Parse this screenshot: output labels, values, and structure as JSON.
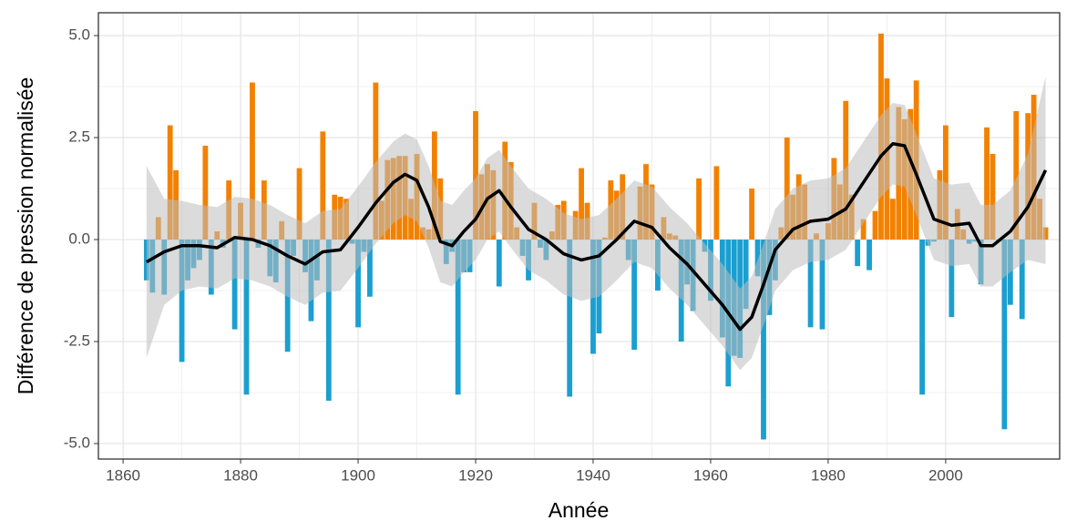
{
  "chart_data": {
    "type": "bar",
    "xlabel": "Année",
    "ylabel": "Différence de pression normalisée",
    "positive_color": "#f28100",
    "negative_color": "#1a9fd0",
    "xlim": [
      1855.8,
      2019.4
    ],
    "ylim": [
      -5.38,
      5.56
    ],
    "xticks": [
      1860,
      1880,
      1900,
      1920,
      1940,
      1960,
      1980,
      2000
    ],
    "yticks": [
      {
        "value": 5,
        "label": "5.0"
      },
      {
        "value": 2.5,
        "label": "2.5"
      },
      {
        "value": 0,
        "label": "0.0"
      },
      {
        "value": -2.5,
        "label": "-2.5"
      },
      {
        "value": -5,
        "label": "-5.0"
      }
    ],
    "grid": true,
    "minor_grid": true,
    "x": [
      1864,
      1865,
      1866,
      1867,
      1868,
      1869,
      1870,
      1871,
      1872,
      1873,
      1874,
      1875,
      1876,
      1877,
      1878,
      1879,
      1880,
      1881,
      1882,
      1883,
      1884,
      1885,
      1886,
      1887,
      1888,
      1889,
      1890,
      1891,
      1892,
      1893,
      1894,
      1895,
      1896,
      1897,
      1898,
      1899,
      1900,
      1901,
      1902,
      1903,
      1904,
      1905,
      1906,
      1907,
      1908,
      1909,
      1910,
      1911,
      1912,
      1913,
      1914,
      1915,
      1916,
      1917,
      1918,
      1919,
      1920,
      1921,
      1922,
      1923,
      1924,
      1925,
      1926,
      1927,
      1928,
      1929,
      1930,
      1931,
      1932,
      1933,
      1934,
      1935,
      1936,
      1937,
      1938,
      1939,
      1940,
      1941,
      1942,
      1943,
      1944,
      1945,
      1946,
      1947,
      1948,
      1949,
      1950,
      1951,
      1952,
      1953,
      1954,
      1955,
      1956,
      1957,
      1958,
      1959,
      1960,
      1961,
      1962,
      1963,
      1964,
      1965,
      1966,
      1967,
      1968,
      1969,
      1970,
      1971,
      1972,
      1973,
      1974,
      1975,
      1976,
      1977,
      1978,
      1979,
      1980,
      1981,
      1982,
      1983,
      1984,
      1985,
      1986,
      1987,
      1988,
      1989,
      1990,
      1991,
      1992,
      1993,
      1994,
      1995,
      1996,
      1997,
      1998,
      1999,
      2000,
      2001,
      2002,
      2003,
      2004,
      2005,
      2006,
      2007,
      2008,
      2009,
      2010,
      2011,
      2012,
      2013,
      2014,
      2015,
      2016,
      2017
    ],
    "values": [
      -1.0,
      -1.3,
      0.55,
      -1.35,
      2.8,
      1.7,
      -3.0,
      -1.0,
      -0.7,
      -0.5,
      2.3,
      -1.35,
      0.2,
      -0.2,
      1.45,
      -2.2,
      0.9,
      -3.8,
      3.85,
      -0.2,
      1.45,
      -0.9,
      -1.05,
      0.45,
      -2.75,
      -0.4,
      1.75,
      -0.8,
      -2.0,
      -1.0,
      2.65,
      -3.95,
      1.1,
      1.05,
      1.0,
      -0.1,
      -2.15,
      -0.3,
      -1.4,
      3.85,
      0.95,
      1.95,
      2.0,
      2.05,
      2.05,
      1.0,
      2.1,
      0.3,
      0.25,
      2.65,
      1.5,
      -0.6,
      -0.3,
      -3.8,
      -0.8,
      -0.8,
      3.15,
      1.6,
      1.85,
      1.7,
      -1.15,
      2.4,
      1.9,
      0.3,
      -0.4,
      -1.0,
      0.9,
      -0.2,
      -0.5,
      0.2,
      0.85,
      0.95,
      -3.85,
      0.7,
      1.75,
      0.9,
      -2.8,
      -2.3,
      0.05,
      1.45,
      1.2,
      1.6,
      -0.5,
      -2.7,
      1.3,
      1.85,
      1.35,
      -1.25,
      0.55,
      0.15,
      0.1,
      -2.5,
      -1.1,
      -1.75,
      1.5,
      -0.3,
      -1.5,
      1.8,
      -2.4,
      -3.6,
      -2.85,
      -2.9,
      -1.7,
      1.25,
      -0.9,
      -4.9,
      -1.85,
      -1.0,
      0.3,
      2.5,
      1.1,
      1.6,
      1.35,
      -2.15,
      0.15,
      -2.2,
      0.4,
      2.0,
      1.35,
      3.4,
      1.1,
      -0.65,
      0.5,
      -0.75,
      0.7,
      5.05,
      3.95,
      1.0,
      3.25,
      2.95,
      3.2,
      3.9,
      -3.8,
      -0.15,
      -0.05,
      1.7,
      2.8,
      -1.9,
      0.75,
      0.25,
      -0.1,
      -0.05,
      -1.1,
      2.75,
      2.1,
      -0.05,
      -4.65,
      -1.6,
      3.15,
      -1.95,
      3.1,
      3.55,
      1.0,
      0.3
    ],
    "smooth": {
      "color": "#000000",
      "band_color": "#bdbdbd",
      "x": [
        1864,
        1867,
        1870,
        1873,
        1876,
        1879,
        1882,
        1885,
        1888,
        1891,
        1894,
        1897,
        1900,
        1903,
        1906,
        1908,
        1910,
        1912,
        1914,
        1916,
        1918,
        1920,
        1922,
        1924,
        1926,
        1929,
        1932,
        1935,
        1938,
        1941,
        1944,
        1947,
        1950,
        1953,
        1956,
        1959,
        1962,
        1965,
        1967,
        1969,
        1971,
        1974,
        1977,
        1980,
        1983,
        1986,
        1989,
        1991,
        1993,
        1995,
        1998,
        2001,
        2004,
        2006,
        2008,
        2011,
        2014,
        2017
      ],
      "values": [
        -0.55,
        -0.3,
        -0.15,
        -0.15,
        -0.2,
        0.05,
        0.0,
        -0.15,
        -0.4,
        -0.6,
        -0.3,
        -0.25,
        0.3,
        0.9,
        1.4,
        1.6,
        1.45,
        0.8,
        -0.05,
        -0.15,
        0.2,
        0.5,
        1.0,
        1.2,
        0.8,
        0.25,
        0.0,
        -0.35,
        -0.5,
        -0.4,
        0.0,
        0.45,
        0.3,
        -0.2,
        -0.6,
        -1.1,
        -1.6,
        -2.2,
        -1.9,
        -1.1,
        -0.25,
        0.25,
        0.45,
        0.5,
        0.75,
        1.4,
        2.05,
        2.35,
        2.3,
        1.6,
        0.5,
        0.35,
        0.4,
        -0.15,
        -0.15,
        0.2,
        0.8,
        1.7
      ],
      "upper": [
        1.8,
        1.0,
        0.95,
        0.85,
        0.8,
        1.05,
        1.0,
        0.85,
        0.6,
        0.4,
        0.7,
        0.75,
        1.3,
        1.9,
        2.4,
        2.6,
        2.45,
        1.8,
        0.95,
        0.85,
        1.2,
        1.5,
        2.0,
        2.2,
        1.8,
        1.25,
        1.0,
        0.65,
        0.5,
        0.6,
        1.0,
        1.45,
        1.3,
        0.8,
        0.4,
        -0.1,
        -0.6,
        -1.2,
        -0.9,
        -0.1,
        0.75,
        1.25,
        1.45,
        1.5,
        1.75,
        2.4,
        3.05,
        3.35,
        3.3,
        2.6,
        1.5,
        1.35,
        1.4,
        0.85,
        0.85,
        1.2,
        2.1,
        4.0
      ],
      "lower": [
        -2.9,
        -1.6,
        -1.25,
        -1.15,
        -1.2,
        -0.95,
        -1.0,
        -1.15,
        -1.4,
        -1.6,
        -1.3,
        -1.25,
        -0.7,
        -0.1,
        0.4,
        0.6,
        0.45,
        -0.2,
        -1.05,
        -1.15,
        -0.8,
        -0.5,
        0.0,
        0.2,
        -0.2,
        -0.75,
        -1.0,
        -1.35,
        -1.5,
        -1.4,
        -1.0,
        -0.55,
        -0.7,
        -1.2,
        -1.6,
        -2.1,
        -2.6,
        -3.2,
        -2.9,
        -2.1,
        -1.25,
        -0.75,
        -0.55,
        -0.5,
        -0.25,
        0.4,
        1.05,
        1.35,
        1.3,
        0.6,
        -0.5,
        -0.65,
        -0.6,
        -1.15,
        -1.15,
        -0.8,
        -0.5,
        -0.6
      ]
    }
  }
}
